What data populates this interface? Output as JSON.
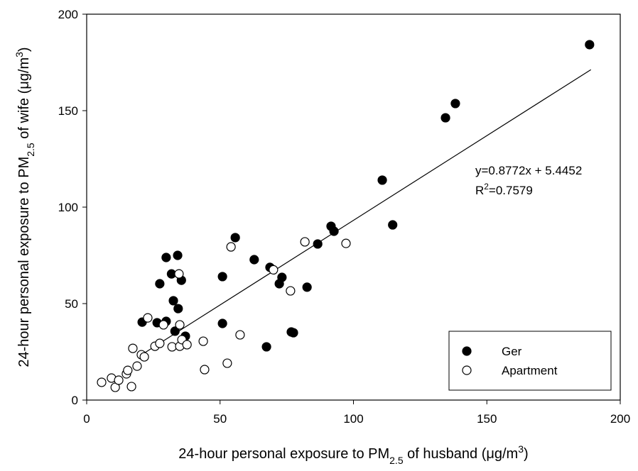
{
  "chart_data": {
    "type": "scatter",
    "x_label": [
      "24-hour personal exposure to PM",
      "2.5",
      " of husband (μg/m",
      "3",
      ")"
    ],
    "x_label_style": [
      "normal",
      "sub",
      "normal",
      "sup",
      "normal"
    ],
    "y_label": [
      "24-hour personal exposure to PM",
      "2.5",
      " of wife (μg/m",
      "3",
      ")"
    ],
    "y_label_style": [
      "normal",
      "sub",
      "normal",
      "sup",
      "normal"
    ],
    "equation": "y=0.8772x + 5.4452",
    "r2": [
      "R",
      "2",
      "=0.7579"
    ],
    "r2_style": [
      "normal",
      "sup",
      "normal"
    ],
    "trendline": {
      "slope": 0.8772,
      "intercept": 5.4452,
      "x_start": 21,
      "x_end": 189
    },
    "xlim": [
      0,
      200
    ],
    "xticks": [
      0,
      50,
      100,
      150,
      200
    ],
    "ylim": [
      0,
      200
    ],
    "yticks": [
      0,
      50,
      100,
      150,
      200
    ],
    "legend": "lower right",
    "series": [
      {
        "name": "Ger",
        "color": "#000000",
        "marker_fill": "#000000",
        "x": [
          188.5,
          138.2,
          134.5,
          110.8,
          114.7,
          91.6,
          92.7,
          86.6,
          82.6,
          76.7,
          77.5,
          73.2,
          72.2,
          68.7,
          62.8,
          67.4,
          55.7,
          50.9,
          50.9,
          34.1,
          31.8,
          35.5,
          32.5,
          34.3,
          33.1,
          29.8,
          27.4,
          29.8,
          26.4,
          20.8,
          37.0
        ],
        "values": [
          184.2,
          153.7,
          146.3,
          114.0,
          90.8,
          90.1,
          87.5,
          80.9,
          58.5,
          35.3,
          34.9,
          63.6,
          60.3,
          68.8,
          72.8,
          27.6,
          84.2,
          64.0,
          39.7,
          75.0,
          65.4,
          62.1,
          51.5,
          47.4,
          35.7,
          73.9,
          60.3,
          40.8,
          40.1,
          40.4,
          33.1
        ]
      },
      {
        "name": "Apartment",
        "color": "#000000",
        "marker_fill": "#ffffff",
        "x": [
          5.6,
          9.3,
          10.7,
          12.0,
          14.9,
          15.4,
          16.8,
          17.3,
          18.9,
          20.5,
          21.6,
          22.9,
          25.6,
          27.4,
          28.8,
          34.6,
          34.9,
          32.0,
          34.9,
          35.7,
          37.6,
          43.7,
          44.2,
          54.1,
          52.7,
          57.5,
          70.0,
          81.8,
          97.2,
          76.4
        ],
        "values": [
          9.2,
          11.4,
          6.6,
          10.3,
          13.6,
          15.4,
          7.0,
          26.8,
          17.6,
          23.5,
          22.4,
          42.6,
          27.9,
          29.4,
          39.0,
          65.4,
          39.0,
          27.6,
          27.9,
          31.3,
          28.7,
          30.5,
          15.8,
          79.4,
          19.1,
          33.8,
          67.5,
          82.0,
          81.2,
          56.6
        ]
      }
    ]
  }
}
